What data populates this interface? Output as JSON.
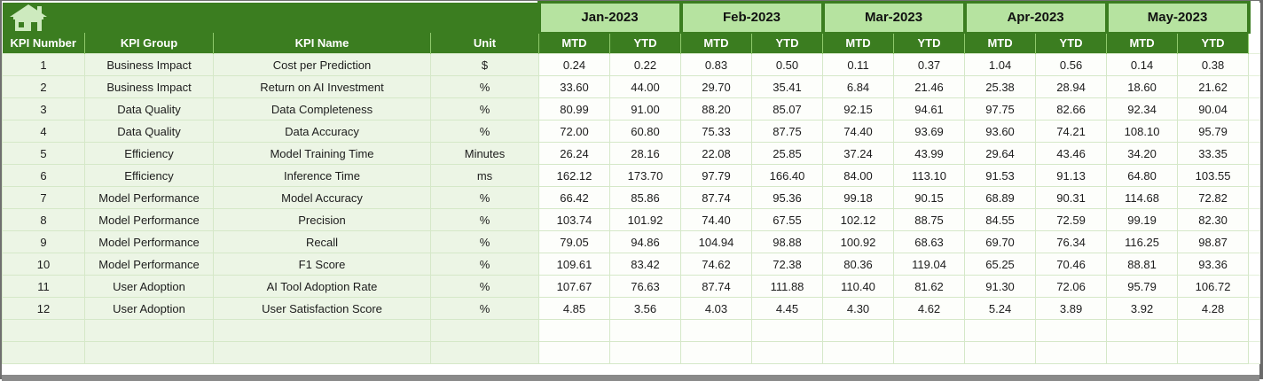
{
  "header": {
    "months": [
      "Jan-2023",
      "Feb-2023",
      "Mar-2023",
      "Apr-2023",
      "May-2023"
    ],
    "mtd": "MTD",
    "ytd": "YTD",
    "kpi_number": "KPI Number",
    "kpi_group": "KPI Group",
    "kpi_name": "KPI Name",
    "unit": "Unit"
  },
  "icons": {
    "home": "home-icon"
  },
  "colors": {
    "dark_green": "#3b7d20",
    "month_band_green": "#b6e3a0",
    "header_divider_green": "#8fca6c",
    "row_label_bg": "#ecf5e5",
    "row_value_bg": "#fdfefb",
    "grid_line": "#d5e8c8",
    "home_icon_fill": "#cdeabe",
    "bottom_bar_gray": "#8a8a8a"
  },
  "rows": [
    {
      "number": "1",
      "group": "Business Impact",
      "name": "Cost per Prediction",
      "unit": "$",
      "values": [
        "0.24",
        "0.22",
        "0.83",
        "0.50",
        "0.11",
        "0.37",
        "1.04",
        "0.56",
        "0.14",
        "0.38"
      ]
    },
    {
      "number": "2",
      "group": "Business Impact",
      "name": "Return on AI Investment",
      "unit": "%",
      "values": [
        "33.60",
        "44.00",
        "29.70",
        "35.41",
        "6.84",
        "21.46",
        "25.38",
        "28.94",
        "18.60",
        "21.62"
      ]
    },
    {
      "number": "3",
      "group": "Data Quality",
      "name": "Data Completeness",
      "unit": "%",
      "values": [
        "80.99",
        "91.00",
        "88.20",
        "85.07",
        "92.15",
        "94.61",
        "97.75",
        "82.66",
        "92.34",
        "90.04"
      ]
    },
    {
      "number": "4",
      "group": "Data Quality",
      "name": "Data Accuracy",
      "unit": "%",
      "values": [
        "72.00",
        "60.80",
        "75.33",
        "87.75",
        "74.40",
        "93.69",
        "93.60",
        "74.21",
        "108.10",
        "95.79"
      ]
    },
    {
      "number": "5",
      "group": "Efficiency",
      "name": "Model Training Time",
      "unit": "Minutes",
      "values": [
        "26.24",
        "28.16",
        "22.08",
        "25.85",
        "37.24",
        "43.99",
        "29.64",
        "43.46",
        "34.20",
        "33.35"
      ]
    },
    {
      "number": "6",
      "group": "Efficiency",
      "name": "Inference Time",
      "unit": "ms",
      "values": [
        "162.12",
        "173.70",
        "97.79",
        "166.40",
        "84.00",
        "113.10",
        "91.53",
        "91.13",
        "64.80",
        "103.55"
      ]
    },
    {
      "number": "7",
      "group": "Model Performance",
      "name": "Model Accuracy",
      "unit": "%",
      "values": [
        "66.42",
        "85.86",
        "87.74",
        "95.36",
        "99.18",
        "90.15",
        "68.89",
        "90.31",
        "114.68",
        "72.82"
      ]
    },
    {
      "number": "8",
      "group": "Model Performance",
      "name": "Precision",
      "unit": "%",
      "values": [
        "103.74",
        "101.92",
        "74.40",
        "67.55",
        "102.12",
        "88.75",
        "84.55",
        "72.59",
        "99.19",
        "82.30"
      ]
    },
    {
      "number": "9",
      "group": "Model Performance",
      "name": "Recall",
      "unit": "%",
      "values": [
        "79.05",
        "94.86",
        "104.94",
        "98.88",
        "100.92",
        "68.63",
        "69.70",
        "76.34",
        "116.25",
        "98.87"
      ]
    },
    {
      "number": "10",
      "group": "Model Performance",
      "name": "F1 Score",
      "unit": "%",
      "values": [
        "109.61",
        "83.42",
        "74.62",
        "72.38",
        "80.36",
        "119.04",
        "65.25",
        "70.46",
        "88.81",
        "93.36"
      ]
    },
    {
      "number": "11",
      "group": "User Adoption",
      "name": "AI Tool Adoption Rate",
      "unit": "%",
      "values": [
        "107.67",
        "76.63",
        "87.74",
        "111.88",
        "110.40",
        "81.62",
        "91.30",
        "72.06",
        "95.79",
        "106.72"
      ]
    },
    {
      "number": "12",
      "group": "User Adoption",
      "name": "User Satisfaction Score",
      "unit": "%",
      "values": [
        "4.85",
        "3.56",
        "4.03",
        "4.45",
        "4.30",
        "4.62",
        "5.24",
        "3.89",
        "3.92",
        "4.28"
      ]
    }
  ],
  "empty_row_count": 2
}
